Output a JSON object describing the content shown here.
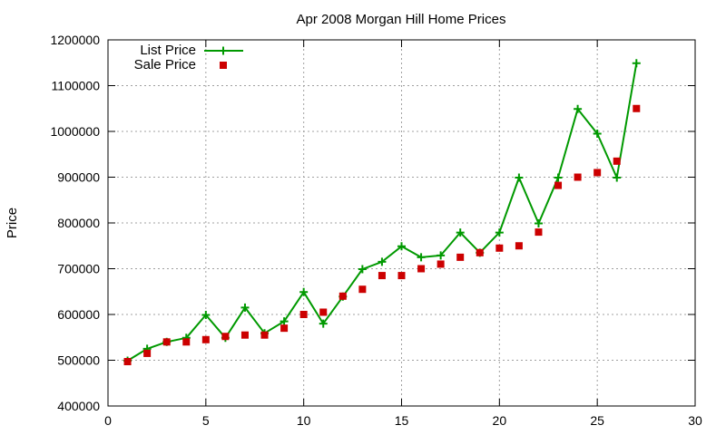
{
  "chart_data": {
    "type": "line",
    "title": "Apr 2008 Morgan Hill Home Prices",
    "xlabel": "",
    "ylabel": "Price",
    "xlim": [
      0,
      30
    ],
    "ylim": [
      400000,
      1200000
    ],
    "xticks": [
      0,
      5,
      10,
      15,
      20,
      25,
      30
    ],
    "yticks": [
      400000,
      500000,
      600000,
      700000,
      800000,
      900000,
      1000000,
      1100000,
      1200000
    ],
    "grid": true,
    "legend_position": "top-left",
    "x": [
      1,
      2,
      3,
      4,
      5,
      6,
      7,
      8,
      9,
      10,
      11,
      12,
      13,
      14,
      15,
      16,
      17,
      18,
      19,
      20,
      21,
      22,
      23,
      24,
      25,
      26,
      27
    ],
    "series": [
      {
        "name": "List Price",
        "style": "line-with-plus-markers",
        "color": "#009900",
        "values": [
          499000,
          525000,
          540000,
          549000,
          599000,
          549000,
          615000,
          559000,
          585000,
          649000,
          580000,
          639000,
          699000,
          715000,
          749000,
          725000,
          729000,
          779000,
          735000,
          779000,
          899000,
          799000,
          899000,
          1049000,
          995000,
          899000,
          1149000
        ]
      },
      {
        "name": "Sale Price",
        "style": "square-markers",
        "color": "#cc0000",
        "values": [
          497000,
          515000,
          540000,
          540000,
          545000,
          552000,
          555000,
          555000,
          570000,
          600000,
          605000,
          640000,
          655000,
          685000,
          685000,
          700000,
          710000,
          725000,
          735000,
          745000,
          750000,
          780000,
          882000,
          900000,
          910000,
          935000,
          1050000
        ]
      }
    ]
  }
}
